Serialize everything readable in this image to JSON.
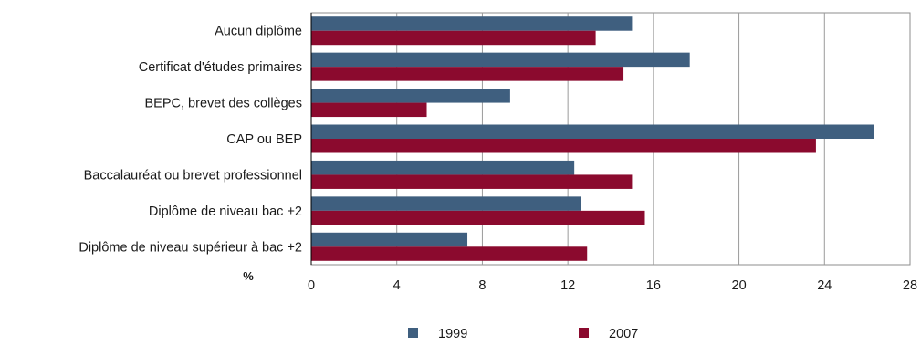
{
  "chart_data": {
    "type": "bar",
    "orientation": "horizontal",
    "categories": [
      "Aucun diplôme",
      "Certificat d'études primaires",
      "BEPC, brevet des collèges",
      "CAP ou BEP",
      "Baccalauréat ou brevet professionnel",
      "Diplôme de niveau bac +2",
      "Diplôme de niveau supérieur à bac +2"
    ],
    "series": [
      {
        "name": "1999",
        "color": "#3f5f7f",
        "values": [
          15.0,
          17.7,
          9.3,
          26.3,
          12.3,
          12.6,
          7.3
        ]
      },
      {
        "name": "2007",
        "color": "#8b0a2e",
        "values": [
          13.3,
          14.6,
          5.4,
          23.6,
          15.0,
          15.6,
          12.9
        ]
      }
    ],
    "xlabel": "%",
    "xlim": [
      0,
      28
    ],
    "xticks": [
      "0",
      "4",
      "8",
      "12",
      "16",
      "20",
      "24",
      "28"
    ],
    "grid": "vertical",
    "legend_position": "bottom"
  }
}
